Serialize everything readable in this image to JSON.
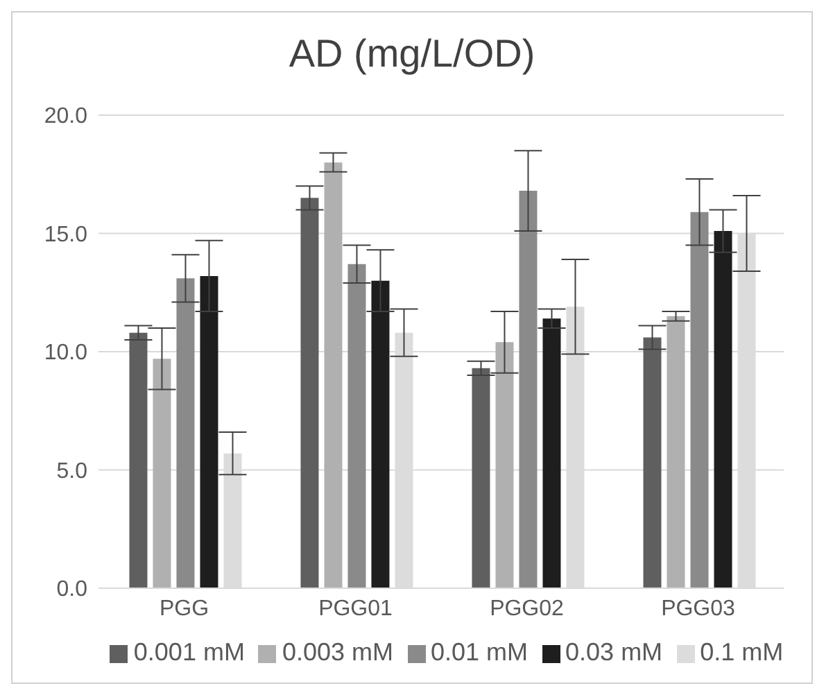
{
  "chart_data": {
    "type": "bar",
    "title": "AD (mg/L/OD)",
    "categories": [
      "PGG",
      "PGG01",
      "PGG02",
      "PGG03"
    ],
    "series": [
      {
        "name": "0.001 mM",
        "color": "#5f5f5f",
        "values": [
          10.8,
          16.5,
          9.3,
          10.6
        ],
        "errors": [
          0.3,
          0.5,
          0.3,
          0.5
        ]
      },
      {
        "name": "0.003 mM",
        "color": "#b0b0b0",
        "values": [
          9.7,
          18.0,
          10.4,
          11.5
        ],
        "errors": [
          1.3,
          0.4,
          1.3,
          0.2
        ]
      },
      {
        "name": "0.01 mM",
        "color": "#8a8a8a",
        "values": [
          13.1,
          13.7,
          16.8,
          15.9
        ],
        "errors": [
          1.0,
          0.8,
          1.7,
          1.4
        ]
      },
      {
        "name": "0.03 mM",
        "color": "#1e1e1e",
        "values": [
          13.2,
          13.0,
          11.4,
          15.1
        ],
        "errors": [
          1.5,
          1.3,
          0.4,
          0.9
        ]
      },
      {
        "name": "0.1 mM",
        "color": "#dcdcdc",
        "values": [
          5.7,
          10.8,
          11.9,
          15.0
        ],
        "errors": [
          0.9,
          1.0,
          2.0,
          1.6
        ]
      }
    ],
    "ylim": [
      0,
      20
    ],
    "yticks": [
      {
        "value": 0,
        "label": "0.0"
      },
      {
        "value": 5,
        "label": "5.0"
      },
      {
        "value": 10,
        "label": "10.0"
      },
      {
        "value": 15,
        "label": "15.0"
      },
      {
        "value": 20,
        "label": "20.0"
      }
    ],
    "grid": "y",
    "legend": "bottom"
  }
}
